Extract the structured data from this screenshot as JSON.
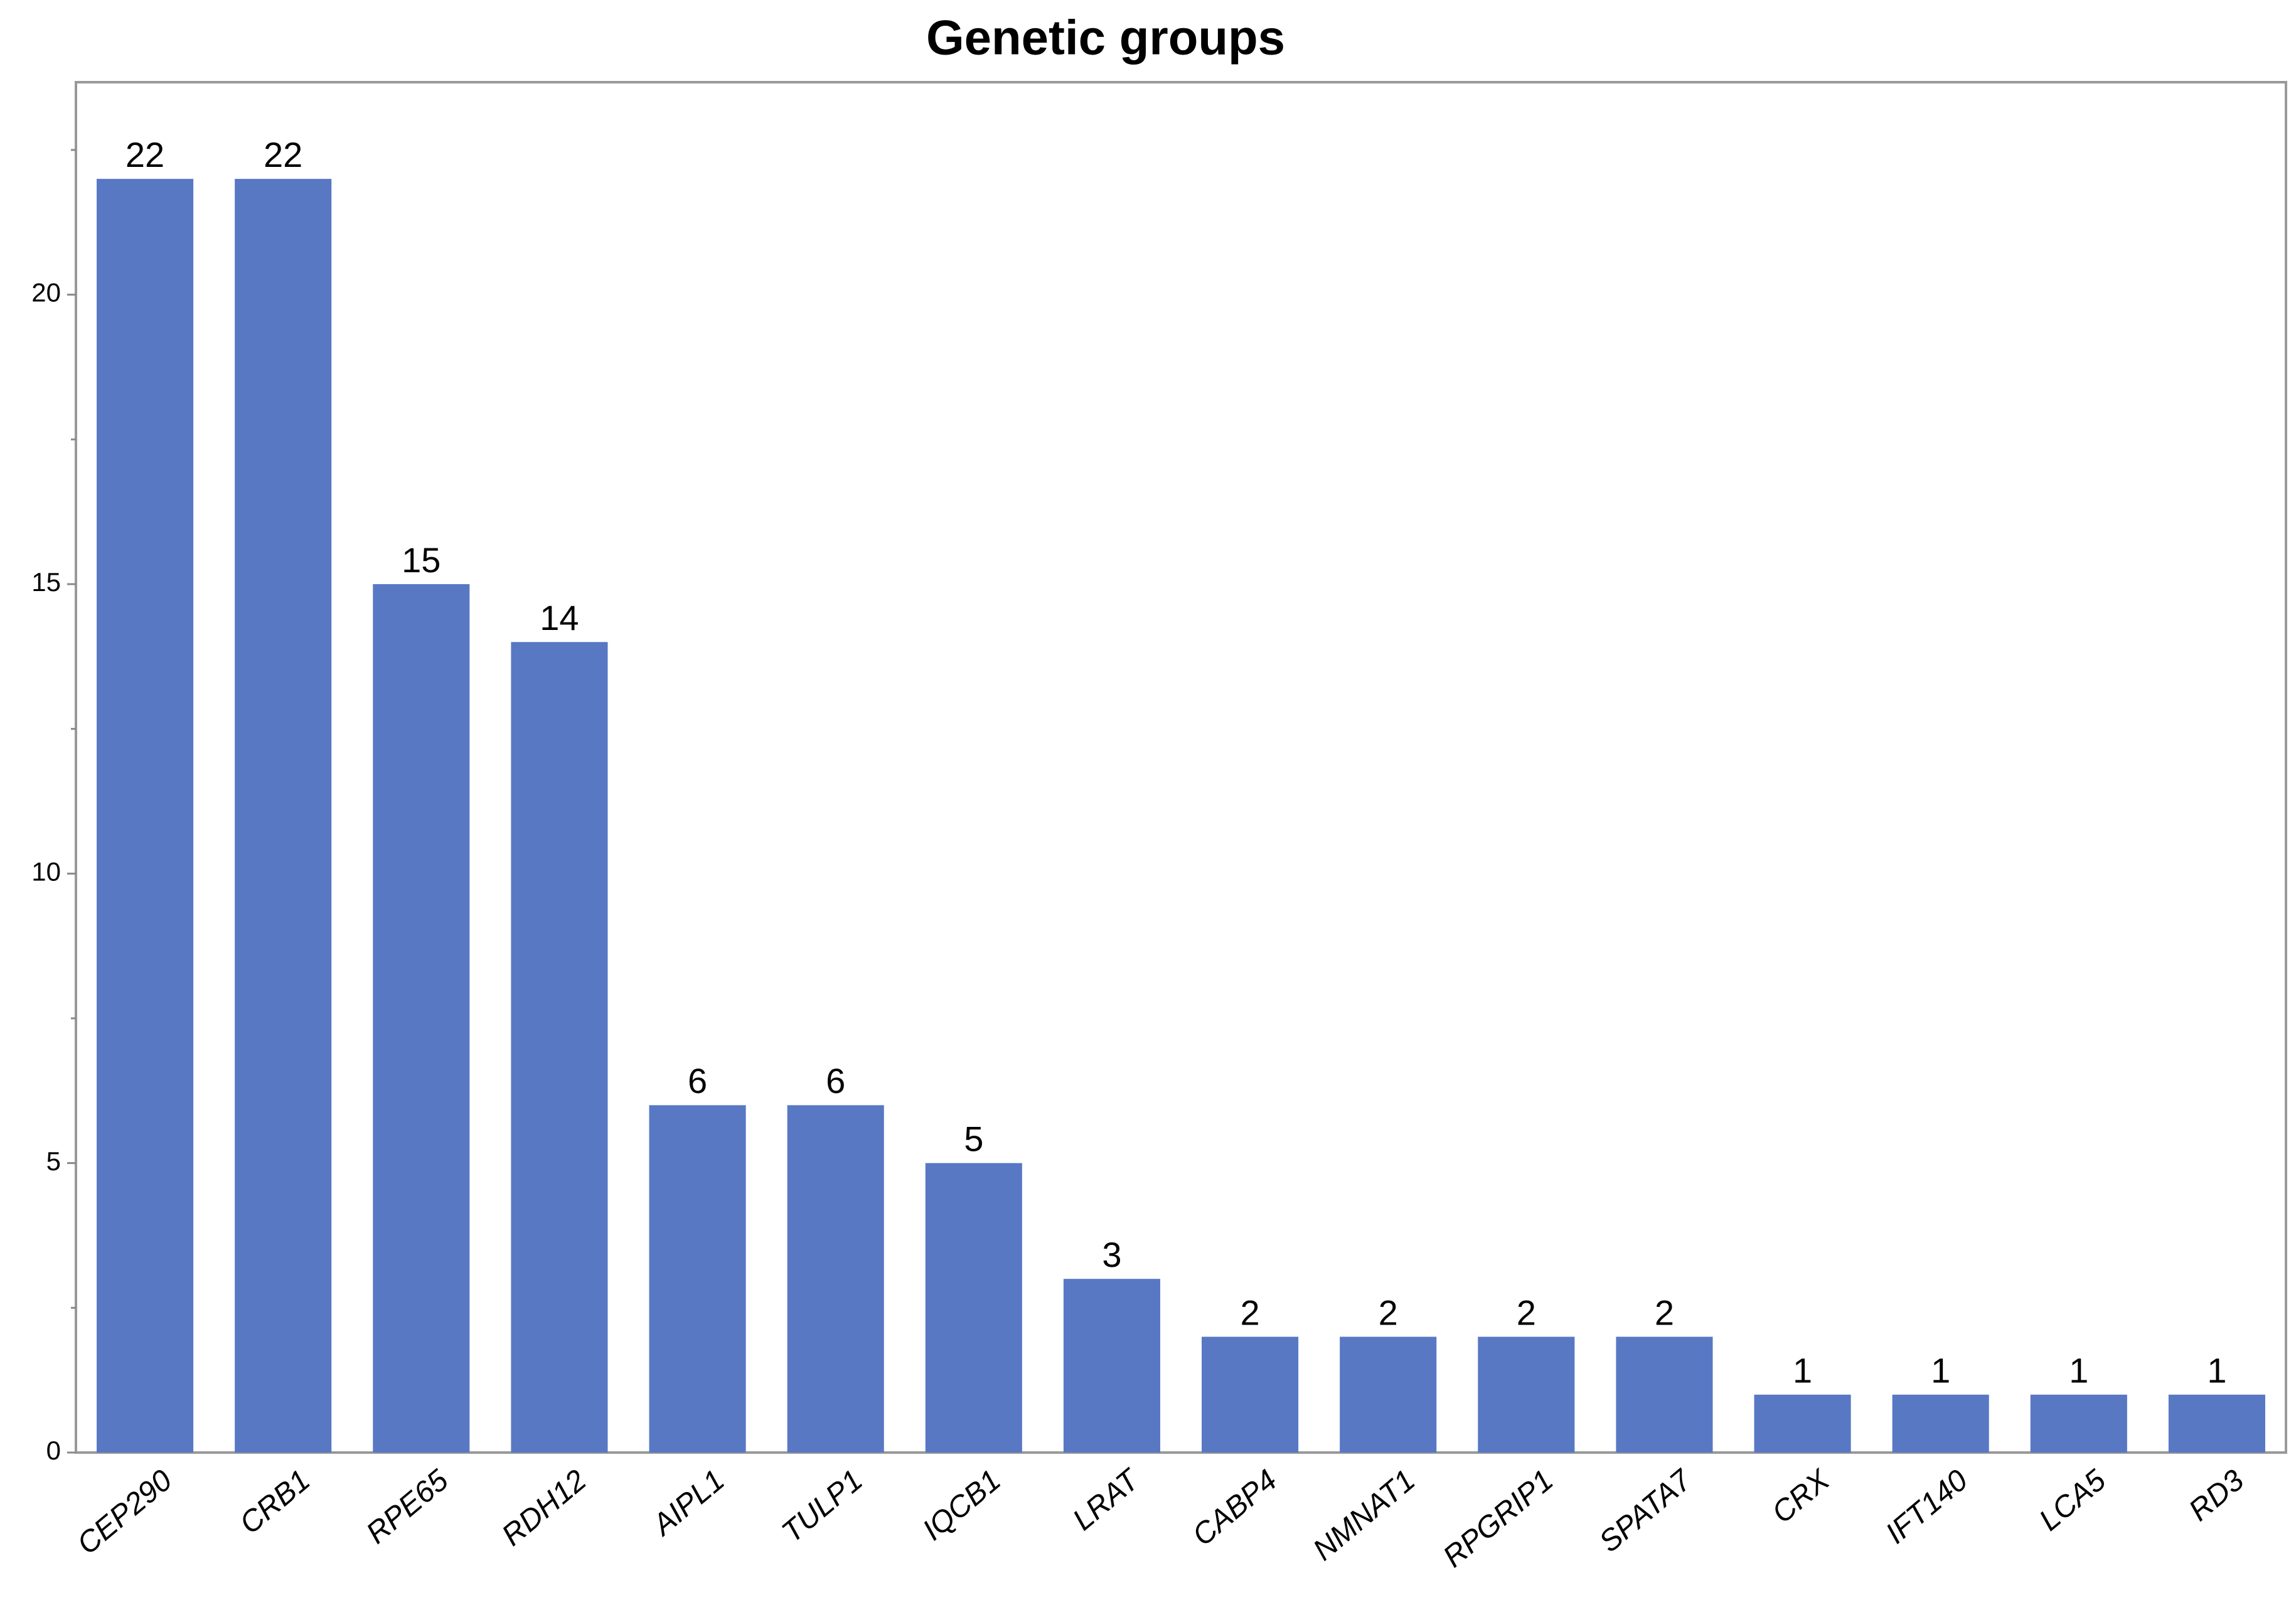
{
  "chart_data": {
    "type": "bar",
    "title": "Genetic groups",
    "categories": [
      "CEP290",
      "CRB1",
      "RPE65",
      "RDH12",
      "AIPL1",
      "TULP1",
      "IQCB1",
      "LRAT",
      "CABP4",
      "NMNAT1",
      "RPGRIP1",
      "SPATA7",
      "CRX",
      "IFT140",
      "LCA5",
      "RD3"
    ],
    "values": [
      22,
      22,
      15,
      14,
      6,
      6,
      5,
      3,
      2,
      2,
      2,
      2,
      1,
      1,
      1,
      1
    ],
    "color": "#5878c4",
    "ylim": [
      0,
      23.67
    ],
    "yticks": [
      0,
      5,
      10,
      15,
      20
    ],
    "minor_yticks": [
      2.5,
      7.5,
      12.5,
      17.5,
      22.5
    ],
    "grid": false
  }
}
